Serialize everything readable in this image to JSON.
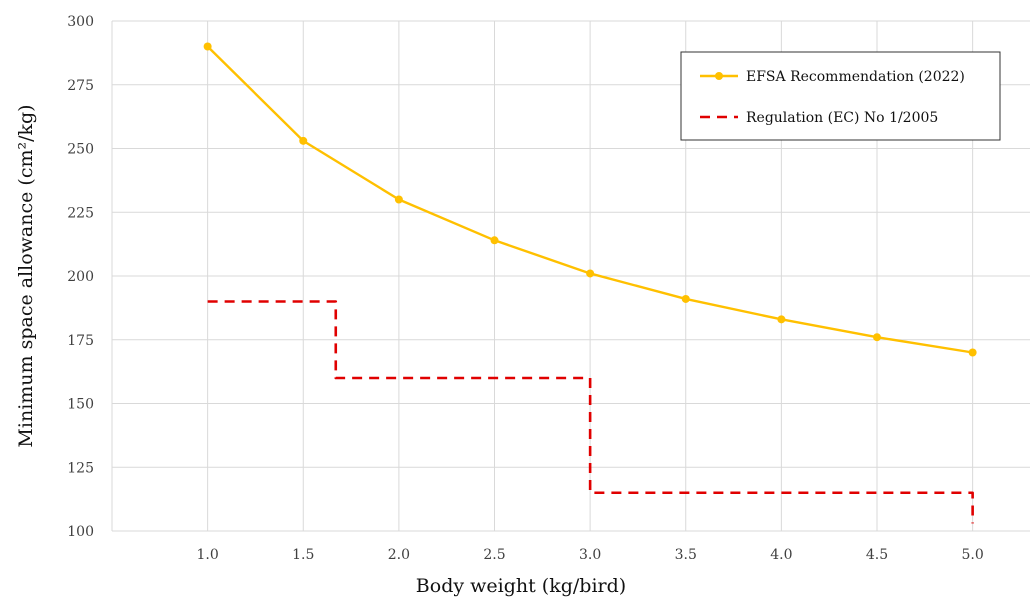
{
  "chart_data": {
    "type": "line",
    "xlabel": "Body weight (kg/bird)",
    "ylabel": "Minimum space allowance (cm²/kg)",
    "xlim": [
      0.5,
      5.3
    ],
    "ylim": [
      100,
      300
    ],
    "xticks": [
      1.0,
      1.5,
      2.0,
      2.5,
      3.0,
      3.5,
      4.0,
      4.5,
      5.0
    ],
    "xtick_labels": [
      "1.0",
      "1.5",
      "2.0",
      "2.5",
      "3.0",
      "3.5",
      "4.0",
      "4.5",
      "5.0"
    ],
    "yticks": [
      100,
      125,
      150,
      175,
      200,
      225,
      250,
      275,
      300
    ],
    "ytick_labels": [
      "100",
      "125",
      "150",
      "175",
      "200",
      "225",
      "250",
      "275",
      "300"
    ],
    "grid": true,
    "legend_position": "top-right",
    "series": [
      {
        "name": "EFSA Recommendation (2022)",
        "style": "solid-with-markers",
        "color": "#FFC000",
        "x": [
          1.0,
          1.5,
          2.0,
          2.5,
          3.0,
          3.5,
          4.0,
          4.5,
          5.0
        ],
        "y": [
          290,
          253,
          230,
          214,
          201,
          191,
          183,
          176,
          170
        ]
      },
      {
        "name": "Regulation (EC) No 1/2005",
        "style": "dashed-step",
        "color": "#E00000",
        "x": [
          1.0,
          1.67,
          1.67,
          3.0,
          3.0,
          5.0,
          5.0
        ],
        "y": [
          190,
          190,
          160,
          160,
          115,
          115,
          103
        ]
      }
    ]
  }
}
